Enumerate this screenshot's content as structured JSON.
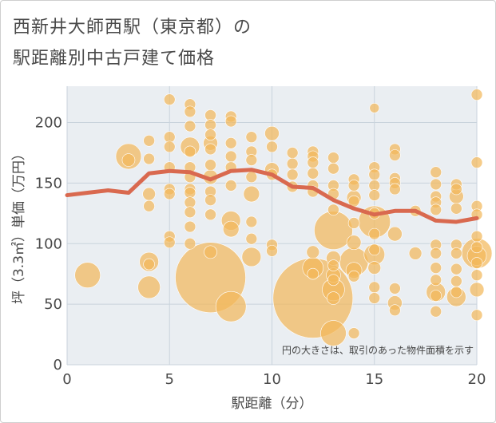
{
  "title_line1": "西新井大師西駅（東京都）の",
  "title_line2": "駅距離別中古戸建て価格",
  "chart_data": {
    "type": "scatter",
    "xlabel": "駅距離（分）",
    "ylabel": "坪（3.3㎡）単価（万円）",
    "xlim": [
      0,
      20
    ],
    "ylim": [
      0,
      230
    ],
    "xticks": [
      0,
      5,
      10,
      15,
      20
    ],
    "yticks": [
      0,
      50,
      100,
      150,
      200
    ],
    "grid": true,
    "annotation": "円の大きさは、取引のあった物件面積を示す",
    "colors": {
      "bubble": "#f2b95c",
      "line": "#d9694f",
      "grid": "#c9d3dc",
      "plot_bg": "#eaeef2"
    },
    "trend_line": {
      "x": [
        0,
        1,
        2,
        3,
        4,
        5,
        6,
        7,
        8,
        9,
        10,
        11,
        12,
        13,
        14,
        15,
        16,
        17,
        18,
        19,
        20
      ],
      "y": [
        140,
        142,
        144,
        142,
        158,
        160,
        159,
        153,
        160,
        161,
        157,
        147,
        146,
        136,
        129,
        124,
        127,
        127,
        119,
        118,
        121
      ]
    },
    "bubbles": [
      {
        "x": 1,
        "y": 74,
        "s": 16
      },
      {
        "x": 3,
        "y": 172,
        "s": 16
      },
      {
        "x": 3,
        "y": 169,
        "s": 8
      },
      {
        "x": 4,
        "y": 185,
        "s": 7
      },
      {
        "x": 4,
        "y": 170,
        "s": 7
      },
      {
        "x": 4,
        "y": 141,
        "s": 8
      },
      {
        "x": 4,
        "y": 131,
        "s": 7
      },
      {
        "x": 4,
        "y": 85,
        "s": 12
      },
      {
        "x": 4,
        "y": 83,
        "s": 7
      },
      {
        "x": 4,
        "y": 64,
        "s": 14
      },
      {
        "x": 5,
        "y": 219,
        "s": 7
      },
      {
        "x": 5,
        "y": 188,
        "s": 7
      },
      {
        "x": 5,
        "y": 180,
        "s": 7
      },
      {
        "x": 5,
        "y": 163,
        "s": 7
      },
      {
        "x": 5,
        "y": 145,
        "s": 7
      },
      {
        "x": 5,
        "y": 141,
        "s": 7
      },
      {
        "x": 5,
        "y": 106,
        "s": 7
      },
      {
        "x": 5,
        "y": 101,
        "s": 7
      },
      {
        "x": 6,
        "y": 215,
        "s": 7
      },
      {
        "x": 6,
        "y": 209,
        "s": 7
      },
      {
        "x": 6,
        "y": 197,
        "s": 7
      },
      {
        "x": 6,
        "y": 180,
        "s": 12
      },
      {
        "x": 6,
        "y": 176,
        "s": 7
      },
      {
        "x": 6,
        "y": 163,
        "s": 7
      },
      {
        "x": 6,
        "y": 155,
        "s": 7
      },
      {
        "x": 6,
        "y": 145,
        "s": 7
      },
      {
        "x": 6,
        "y": 142,
        "s": 7
      },
      {
        "x": 6,
        "y": 134,
        "s": 7
      },
      {
        "x": 6,
        "y": 126,
        "s": 7
      },
      {
        "x": 6,
        "y": 114,
        "s": 7
      },
      {
        "x": 6,
        "y": 100,
        "s": 7
      },
      {
        "x": 7,
        "y": 206,
        "s": 7
      },
      {
        "x": 7,
        "y": 198,
        "s": 7
      },
      {
        "x": 7,
        "y": 190,
        "s": 7
      },
      {
        "x": 7,
        "y": 183,
        "s": 9
      },
      {
        "x": 7,
        "y": 178,
        "s": 7
      },
      {
        "x": 7,
        "y": 165,
        "s": 7
      },
      {
        "x": 7,
        "y": 155,
        "s": 9
      },
      {
        "x": 7,
        "y": 143,
        "s": 7
      },
      {
        "x": 7,
        "y": 136,
        "s": 7
      },
      {
        "x": 7,
        "y": 124,
        "s": 7
      },
      {
        "x": 7,
        "y": 93,
        "s": 8
      },
      {
        "x": 7,
        "y": 72,
        "s": 44
      },
      {
        "x": 8,
        "y": 205,
        "s": 7
      },
      {
        "x": 8,
        "y": 201,
        "s": 7
      },
      {
        "x": 8,
        "y": 183,
        "s": 7
      },
      {
        "x": 8,
        "y": 172,
        "s": 7
      },
      {
        "x": 8,
        "y": 163,
        "s": 7
      },
      {
        "x": 8,
        "y": 148,
        "s": 7
      },
      {
        "x": 8,
        "y": 119,
        "s": 12
      },
      {
        "x": 8,
        "y": 112,
        "s": 10
      },
      {
        "x": 8,
        "y": 48,
        "s": 19
      },
      {
        "x": 9,
        "y": 188,
        "s": 7
      },
      {
        "x": 9,
        "y": 176,
        "s": 7
      },
      {
        "x": 9,
        "y": 169,
        "s": 7
      },
      {
        "x": 9,
        "y": 155,
        "s": 7
      },
      {
        "x": 9,
        "y": 141,
        "s": 10
      },
      {
        "x": 9,
        "y": 118,
        "s": 7
      },
      {
        "x": 9,
        "y": 104,
        "s": 7
      },
      {
        "x": 9,
        "y": 89,
        "s": 12
      },
      {
        "x": 10,
        "y": 191,
        "s": 9
      },
      {
        "x": 10,
        "y": 180,
        "s": 7
      },
      {
        "x": 10,
        "y": 161,
        "s": 9
      },
      {
        "x": 10,
        "y": 157,
        "s": 7
      },
      {
        "x": 10,
        "y": 99,
        "s": 7
      },
      {
        "x": 10,
        "y": 94,
        "s": 7
      },
      {
        "x": 11,
        "y": 175,
        "s": 7
      },
      {
        "x": 11,
        "y": 166,
        "s": 7
      },
      {
        "x": 11,
        "y": 157,
        "s": 7
      },
      {
        "x": 11,
        "y": 147,
        "s": 7
      },
      {
        "x": 12,
        "y": 176,
        "s": 7
      },
      {
        "x": 12,
        "y": 172,
        "s": 7
      },
      {
        "x": 12,
        "y": 167,
        "s": 7
      },
      {
        "x": 12,
        "y": 158,
        "s": 7
      },
      {
        "x": 12,
        "y": 148,
        "s": 7
      },
      {
        "x": 12,
        "y": 143,
        "s": 7
      },
      {
        "x": 12,
        "y": 93,
        "s": 8
      },
      {
        "x": 12,
        "y": 80,
        "s": 13
      },
      {
        "x": 12,
        "y": 75,
        "s": 7
      },
      {
        "x": 12,
        "y": 55,
        "s": 50
      },
      {
        "x": 13,
        "y": 171,
        "s": 7
      },
      {
        "x": 13,
        "y": 162,
        "s": 7
      },
      {
        "x": 13,
        "y": 148,
        "s": 7
      },
      {
        "x": 13,
        "y": 141,
        "s": 7
      },
      {
        "x": 13,
        "y": 128,
        "s": 7
      },
      {
        "x": 13,
        "y": 111,
        "s": 24
      },
      {
        "x": 13,
        "y": 88,
        "s": 9
      },
      {
        "x": 13,
        "y": 82,
        "s": 7
      },
      {
        "x": 13,
        "y": 74,
        "s": 9
      },
      {
        "x": 13,
        "y": 70,
        "s": 7
      },
      {
        "x": 13,
        "y": 62,
        "s": 14
      },
      {
        "x": 13,
        "y": 55,
        "s": 8
      },
      {
        "x": 13,
        "y": 26,
        "s": 16
      },
      {
        "x": 14,
        "y": 153,
        "s": 7
      },
      {
        "x": 14,
        "y": 148,
        "s": 7
      },
      {
        "x": 14,
        "y": 138,
        "s": 9
      },
      {
        "x": 14,
        "y": 135,
        "s": 7
      },
      {
        "x": 14,
        "y": 117,
        "s": 7
      },
      {
        "x": 14,
        "y": 101,
        "s": 9
      },
      {
        "x": 14,
        "y": 85,
        "s": 18
      },
      {
        "x": 14,
        "y": 78,
        "s": 10
      },
      {
        "x": 14,
        "y": 73,
        "s": 7
      },
      {
        "x": 14,
        "y": 26,
        "s": 7
      },
      {
        "x": 15,
        "y": 212,
        "s": 6
      },
      {
        "x": 15,
        "y": 163,
        "s": 7
      },
      {
        "x": 15,
        "y": 157,
        "s": 7
      },
      {
        "x": 15,
        "y": 148,
        "s": 7
      },
      {
        "x": 15,
        "y": 140,
        "s": 7
      },
      {
        "x": 15,
        "y": 125,
        "s": 7
      },
      {
        "x": 15,
        "y": 118,
        "s": 20
      },
      {
        "x": 15,
        "y": 108,
        "s": 7
      },
      {
        "x": 15,
        "y": 95,
        "s": 7
      },
      {
        "x": 15,
        "y": 91,
        "s": 13
      },
      {
        "x": 15,
        "y": 80,
        "s": 8
      },
      {
        "x": 15,
        "y": 64,
        "s": 7
      },
      {
        "x": 15,
        "y": 55,
        "s": 7
      },
      {
        "x": 16,
        "y": 178,
        "s": 7
      },
      {
        "x": 16,
        "y": 173,
        "s": 7
      },
      {
        "x": 16,
        "y": 154,
        "s": 7
      },
      {
        "x": 16,
        "y": 150,
        "s": 7
      },
      {
        "x": 16,
        "y": 145,
        "s": 7
      },
      {
        "x": 16,
        "y": 108,
        "s": 9
      },
      {
        "x": 16,
        "y": 63,
        "s": 7
      },
      {
        "x": 16,
        "y": 51,
        "s": 9
      },
      {
        "x": 16,
        "y": 45,
        "s": 7
      },
      {
        "x": 17,
        "y": 127,
        "s": 7
      },
      {
        "x": 17,
        "y": 92,
        "s": 8
      },
      {
        "x": 18,
        "y": 159,
        "s": 7
      },
      {
        "x": 18,
        "y": 149,
        "s": 7
      },
      {
        "x": 18,
        "y": 139,
        "s": 7
      },
      {
        "x": 18,
        "y": 134,
        "s": 7
      },
      {
        "x": 18,
        "y": 128,
        "s": 7
      },
      {
        "x": 18,
        "y": 99,
        "s": 7
      },
      {
        "x": 18,
        "y": 92,
        "s": 7
      },
      {
        "x": 18,
        "y": 80,
        "s": 7
      },
      {
        "x": 18,
        "y": 70,
        "s": 7
      },
      {
        "x": 18,
        "y": 60,
        "s": 12
      },
      {
        "x": 18,
        "y": 57,
        "s": 7
      },
      {
        "x": 18,
        "y": 44,
        "s": 7
      },
      {
        "x": 19,
        "y": 149,
        "s": 7
      },
      {
        "x": 19,
        "y": 145,
        "s": 7
      },
      {
        "x": 19,
        "y": 139,
        "s": 9
      },
      {
        "x": 19,
        "y": 129,
        "s": 7
      },
      {
        "x": 19,
        "y": 99,
        "s": 7
      },
      {
        "x": 19,
        "y": 92,
        "s": 7
      },
      {
        "x": 19,
        "y": 79,
        "s": 7
      },
      {
        "x": 19,
        "y": 69,
        "s": 7
      },
      {
        "x": 19,
        "y": 60,
        "s": 7
      },
      {
        "x": 19,
        "y": 56,
        "s": 12
      },
      {
        "x": 20,
        "y": 223,
        "s": 7
      },
      {
        "x": 20,
        "y": 167,
        "s": 7
      },
      {
        "x": 20,
        "y": 131,
        "s": 7
      },
      {
        "x": 20,
        "y": 124,
        "s": 7
      },
      {
        "x": 20,
        "y": 106,
        "s": 7
      },
      {
        "x": 20,
        "y": 97,
        "s": 7
      },
      {
        "x": 20,
        "y": 92,
        "s": 19
      },
      {
        "x": 20,
        "y": 90,
        "s": 12
      },
      {
        "x": 20,
        "y": 84,
        "s": 7
      },
      {
        "x": 20,
        "y": 74,
        "s": 7
      },
      {
        "x": 20,
        "y": 62,
        "s": 9
      },
      {
        "x": 20,
        "y": 41,
        "s": 7
      }
    ]
  }
}
